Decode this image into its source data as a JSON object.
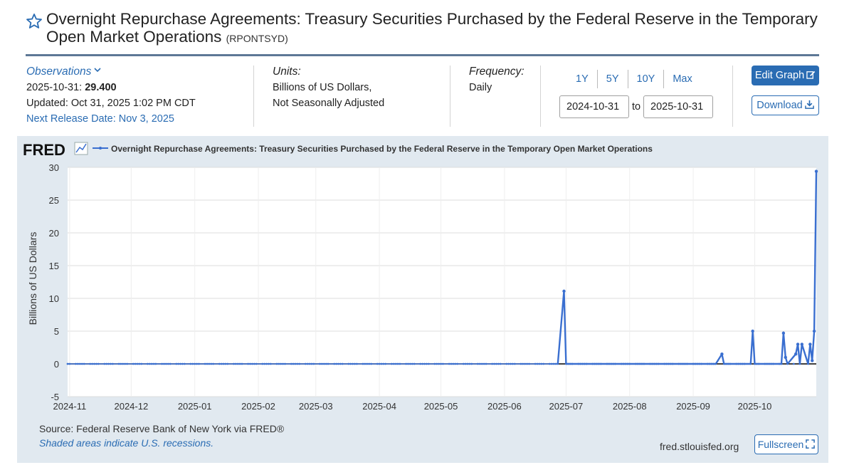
{
  "header": {
    "title": "Overnight Repurchase Agreements: Treasury Securities Purchased by the Federal Reserve in the Temporary Open Market Operations",
    "series_code": "(RPONTSYD)"
  },
  "observations": {
    "label": "Observations",
    "latest_date": "2025-10-31:",
    "latest_value": "29.400",
    "updated": "Updated: Oct 31, 2025 1:02 PM CDT",
    "next_release": "Next Release Date: Nov 3, 2025"
  },
  "units": {
    "label": "Units:",
    "line1": "Billions of US Dollars,",
    "line2": "Not Seasonally Adjusted"
  },
  "frequency": {
    "label": "Frequency:",
    "value": "Daily"
  },
  "range": {
    "buttons": [
      "1Y",
      "5Y",
      "10Y",
      "Max"
    ],
    "start": "2024-10-31",
    "to": "to",
    "end": "2025-10-31"
  },
  "actions": {
    "edit": "Edit Graph",
    "download": "Download",
    "fullscreen": "Fullscreen"
  },
  "footer": {
    "source": "Source: Federal Reserve Bank of New York via FRED®",
    "recessions": "Shaded areas indicate U.S. recessions.",
    "url": "fred.stlouisfed.org"
  },
  "colors": {
    "series": "#3a6fd0",
    "accent": "#2a6cb3",
    "panel": "#e1e9f0",
    "zero_line": "#000000"
  },
  "chart_data": {
    "type": "line",
    "logo": "FRED",
    "legend": "Overnight Repurchase Agreements: Treasury Securities Purchased by the Federal Reserve in the Temporary Open Market Operations",
    "ylabel": "Billions of US Dollars",
    "xlabel": "",
    "ylim": [
      -5,
      30
    ],
    "yticks": [
      -5,
      0,
      5,
      10,
      15,
      20,
      25,
      30
    ],
    "xlim": [
      "2024-10-31",
      "2025-10-31"
    ],
    "xticks": [
      "2024-11",
      "2024-12",
      "2025-01",
      "2025-02",
      "2025-03",
      "2025-04",
      "2025-05",
      "2025-06",
      "2025-07",
      "2025-08",
      "2025-09",
      "2025-10"
    ],
    "grid": "horizontal",
    "baseline_value": 0,
    "series": [
      {
        "name": "Overnight Repurchase Agreements: Treasury Securities Purchased by the Federal Reserve in the Temporary Open Market Operations",
        "points": [
          [
            "2025-06-27",
            0
          ],
          [
            "2025-06-30",
            11.1
          ],
          [
            "2025-07-01",
            0
          ],
          [
            "2025-09-12",
            0
          ],
          [
            "2025-09-15",
            1.5
          ],
          [
            "2025-09-16",
            0
          ],
          [
            "2025-09-29",
            0
          ],
          [
            "2025-09-30",
            5.0
          ],
          [
            "2025-10-01",
            0
          ],
          [
            "2025-10-14",
            0
          ],
          [
            "2025-10-15",
            4.7
          ],
          [
            "2025-10-16",
            1.0
          ],
          [
            "2025-10-17",
            0
          ],
          [
            "2025-10-21",
            1.5
          ],
          [
            "2025-10-22",
            3.0
          ],
          [
            "2025-10-23",
            0
          ],
          [
            "2025-10-24",
            3.0
          ],
          [
            "2025-10-27",
            0
          ],
          [
            "2025-10-28",
            3.0
          ],
          [
            "2025-10-29",
            0.5
          ],
          [
            "2025-10-30",
            5.0
          ],
          [
            "2025-10-31",
            29.4
          ]
        ]
      }
    ]
  }
}
